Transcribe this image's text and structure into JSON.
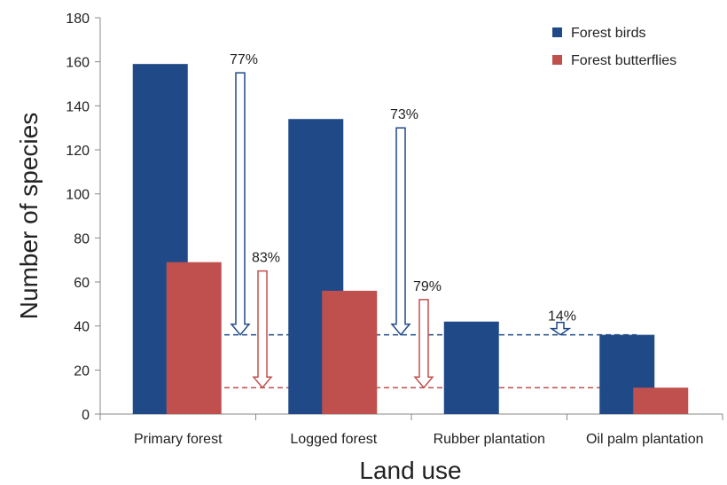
{
  "chart_data": {
    "type": "bar",
    "categories": [
      "Primary forest",
      "Logged forest",
      "Rubber plantation",
      "Oil palm plantation"
    ],
    "series": [
      {
        "name": "Forest birds",
        "values": [
          159,
          134,
          42,
          36
        ],
        "color": "#1f4a87"
      },
      {
        "name": "Forest butterflies",
        "values": [
          69,
          56,
          null,
          12
        ],
        "color": "#c0504d"
      }
    ],
    "xlabel": "Land use",
    "ylabel": "Number of species",
    "ylim": [
      0,
      180
    ],
    "yticks": [
      0,
      20,
      40,
      60,
      80,
      100,
      120,
      140,
      160,
      180
    ],
    "grid": false,
    "legend_position": "top-right",
    "reference_lines": [
      {
        "series": "Forest birds",
        "value": 36,
        "style": "dashed"
      },
      {
        "series": "Forest butterflies",
        "value": 12,
        "style": "dashed"
      }
    ],
    "annotations": [
      {
        "label": "77%",
        "series": "Forest birds",
        "from_value": 159,
        "to_value": 36
      },
      {
        "label": "83%",
        "series": "Forest butterflies",
        "from_value": 69,
        "to_value": 12
      },
      {
        "label": "73%",
        "series": "Forest birds",
        "from_value": 134,
        "to_value": 36
      },
      {
        "label": "79%",
        "series": "Forest butterflies",
        "from_value": 56,
        "to_value": 12
      },
      {
        "label": "14%",
        "series": "Forest birds",
        "from_value": 42,
        "to_value": 36
      }
    ]
  }
}
